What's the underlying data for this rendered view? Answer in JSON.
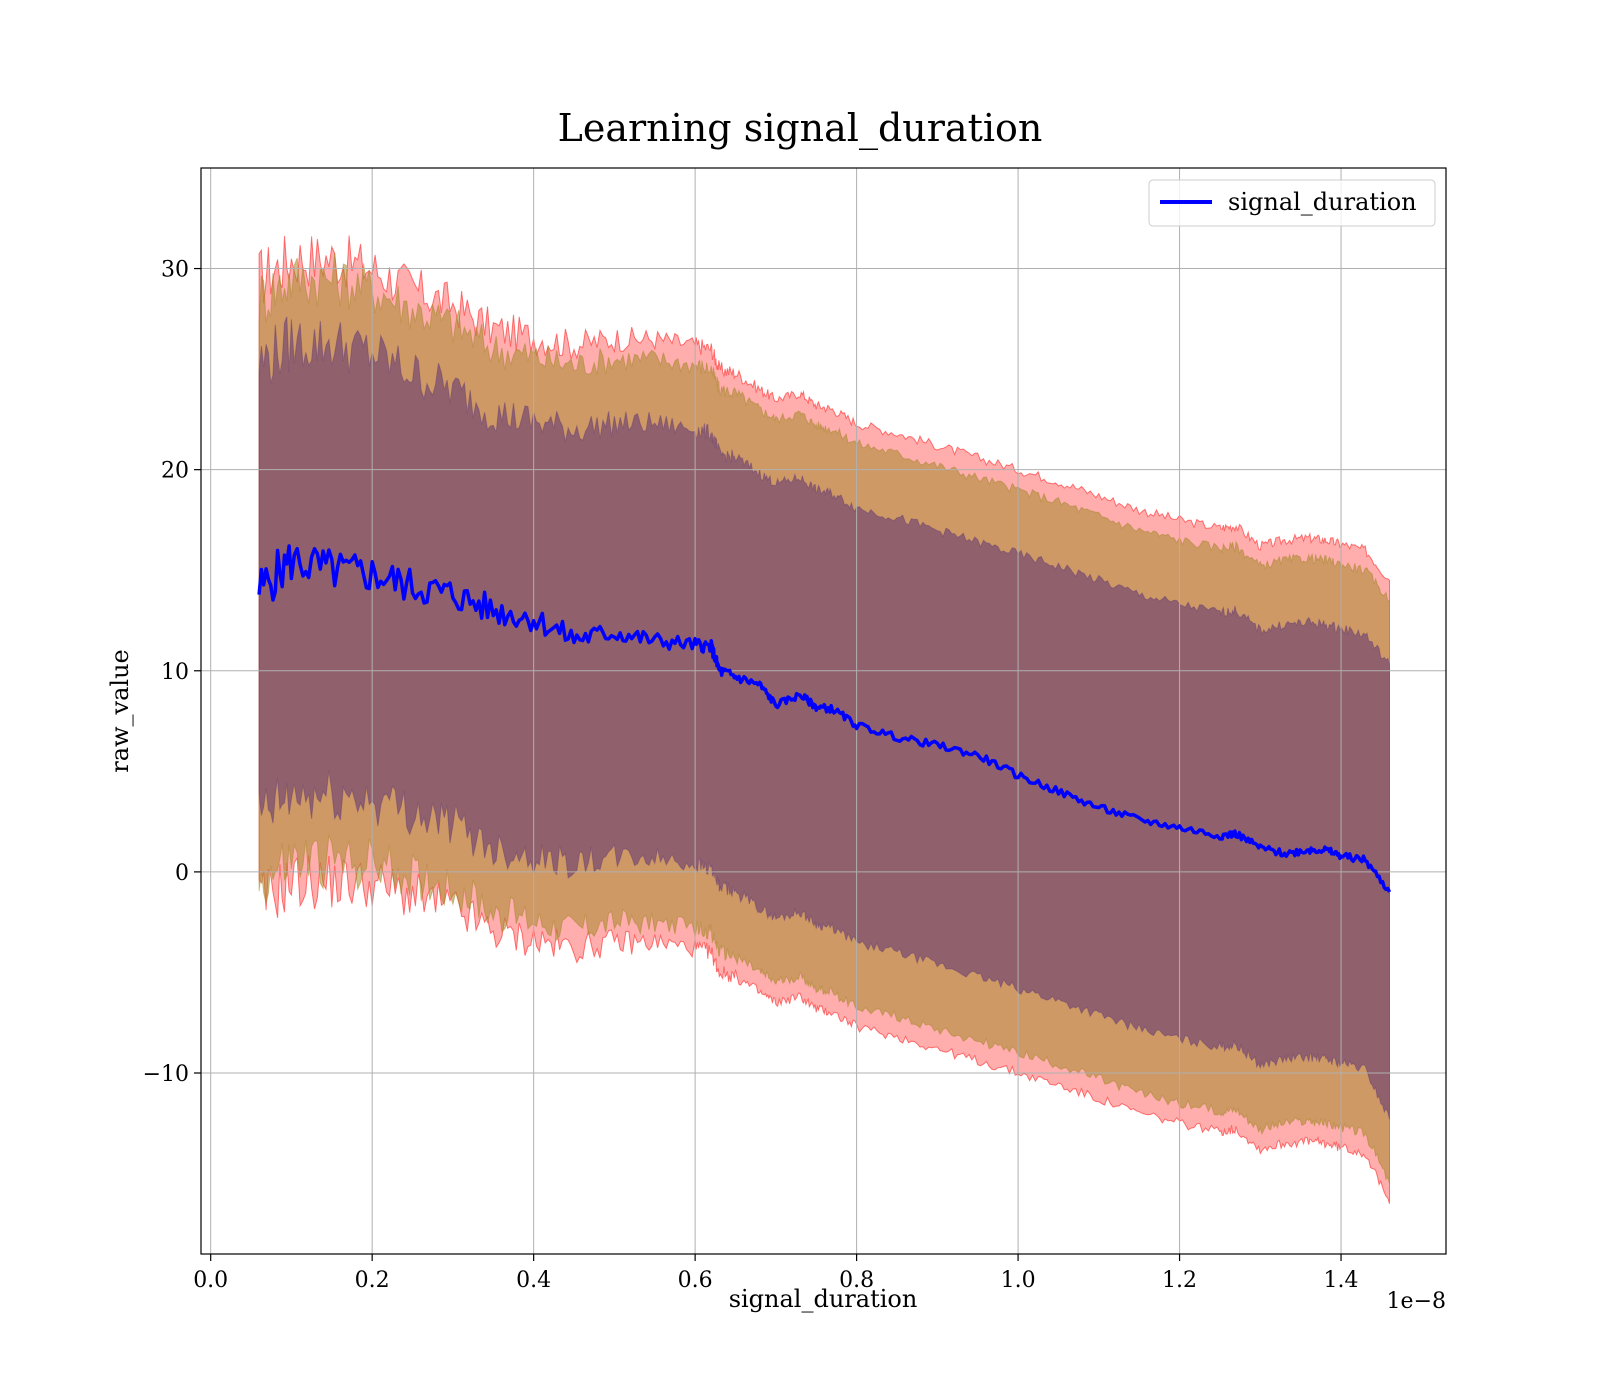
{
  "chart_data": {
    "type": "line",
    "title": "Learning signal_duration",
    "xlabel": "signal_duration",
    "ylabel": "raw_value",
    "x_offset_label": "1e−8",
    "xlim": [
      -0.012,
      1.53
    ],
    "ylim": [
      -19,
      35
    ],
    "x_ticks": [
      0.0,
      0.2,
      0.4,
      0.6,
      0.8,
      1.0,
      1.2,
      1.4
    ],
    "x_tick_labels": [
      "0.0",
      "0.2",
      "0.4",
      "0.6",
      "0.8",
      "1.0",
      "1.2",
      "1.4"
    ],
    "y_ticks": [
      -10,
      0,
      10,
      20,
      30
    ],
    "y_tick_labels": [
      "−10",
      "0",
      "10",
      "20",
      "30"
    ],
    "grid": true,
    "legend_position": "top-right",
    "colors": {
      "mean_line": "#0000ff",
      "band_outer": "#ff0000",
      "band_middle": "#a5882a",
      "band_inner": "#6a3f72"
    },
    "x": [
      0.06,
      0.1,
      0.15,
      0.2,
      0.25,
      0.3,
      0.35,
      0.4,
      0.45,
      0.5,
      0.55,
      0.6,
      0.62,
      0.63,
      0.65,
      0.68,
      0.7,
      0.73,
      0.75,
      0.77,
      0.8,
      0.85,
      0.9,
      0.95,
      1.0,
      1.05,
      1.1,
      1.15,
      1.2,
      1.25,
      1.27,
      1.3,
      1.33,
      1.36,
      1.38,
      1.4,
      1.43,
      1.46
    ],
    "series": [
      {
        "name": "signal_duration",
        "values": [
          14.0,
          15.5,
          15.0,
          14.8,
          14.2,
          13.8,
          13.0,
          12.6,
          11.6,
          11.9,
          11.5,
          11.3,
          11.2,
          10.0,
          9.7,
          9.3,
          8.3,
          8.8,
          8.2,
          8.1,
          7.3,
          6.7,
          6.3,
          5.8,
          4.8,
          4.0,
          3.2,
          2.6,
          2.2,
          1.8,
          1.9,
          1.2,
          0.9,
          1.1,
          1.1,
          0.8,
          0.6,
          -1.0
        ]
      }
    ],
    "bands": [
      {
        "upper": [
          29.5,
          30.5,
          30.5,
          30.0,
          29.0,
          28.2,
          27.0,
          26.6,
          26.2,
          26.5,
          26.5,
          26.2,
          26.0,
          25.0,
          24.8,
          24.0,
          23.5,
          23.8,
          23.2,
          23.0,
          22.3,
          21.8,
          21.2,
          20.6,
          20.0,
          19.4,
          18.7,
          18.0,
          17.5,
          17.1,
          17.2,
          16.2,
          16.5,
          16.6,
          16.5,
          16.3,
          16.0,
          14.5
        ],
        "lower": [
          -1.5,
          -0.5,
          -0.5,
          -0.6,
          -1.2,
          -1.8,
          -3.0,
          -3.4,
          -3.8,
          -3.5,
          -3.5,
          -3.8,
          -4.0,
          -5.0,
          -5.2,
          -6.0,
          -6.5,
          -6.2,
          -6.8,
          -7.0,
          -7.7,
          -8.2,
          -8.8,
          -9.4,
          -10.0,
          -10.6,
          -11.3,
          -12.0,
          -12.5,
          -12.9,
          -12.8,
          -13.8,
          -13.5,
          -13.4,
          -13.5,
          -13.7,
          -14.0,
          -16.5
        ]
      },
      {
        "upper": [
          28.5,
          29.5,
          29.5,
          29.0,
          28.0,
          27.2,
          26.0,
          25.6,
          25.2,
          25.5,
          25.5,
          25.2,
          25.0,
          24.0,
          23.8,
          23.0,
          22.5,
          22.8,
          22.2,
          22.0,
          21.3,
          20.8,
          20.2,
          19.6,
          19.0,
          18.4,
          17.7,
          17.0,
          16.5,
          16.1,
          16.2,
          15.2,
          15.5,
          15.6,
          15.5,
          15.3,
          15.0,
          13.5
        ],
        "lower": [
          -0.5,
          0.5,
          0.5,
          0.4,
          -0.2,
          -0.8,
          -2.0,
          -2.4,
          -2.8,
          -2.5,
          -2.5,
          -2.8,
          -3.0,
          -4.0,
          -4.2,
          -5.0,
          -5.5,
          -5.2,
          -5.8,
          -6.0,
          -6.7,
          -7.2,
          -7.8,
          -8.4,
          -9.0,
          -9.6,
          -10.3,
          -11.0,
          -11.5,
          -11.9,
          -11.8,
          -12.8,
          -12.5,
          -12.4,
          -12.5,
          -12.7,
          -13.0,
          -15.5
        ]
      },
      {
        "upper": [
          25.3,
          26.3,
          26.3,
          25.8,
          24.8,
          24.0,
          22.8,
          22.4,
          22.0,
          22.3,
          22.3,
          22.0,
          21.8,
          20.8,
          20.6,
          19.8,
          19.3,
          19.6,
          19.0,
          18.8,
          18.1,
          17.6,
          17.0,
          16.4,
          15.8,
          15.2,
          14.5,
          13.8,
          13.3,
          12.9,
          13.0,
          12.0,
          12.3,
          12.4,
          12.3,
          12.1,
          11.8,
          10.3
        ],
        "lower": [
          2.7,
          3.7,
          3.7,
          3.6,
          3.0,
          2.4,
          1.2,
          0.8,
          0.4,
          0.7,
          0.7,
          0.4,
          0.2,
          -0.8,
          -1.0,
          -1.8,
          -2.3,
          -2.0,
          -2.6,
          -2.8,
          -3.5,
          -4.0,
          -4.6,
          -5.2,
          -5.8,
          -6.4,
          -7.1,
          -7.8,
          -8.3,
          -8.7,
          -8.6,
          -9.6,
          -9.3,
          -9.2,
          -9.3,
          -9.5,
          -9.8,
          -12.3
        ]
      }
    ]
  }
}
